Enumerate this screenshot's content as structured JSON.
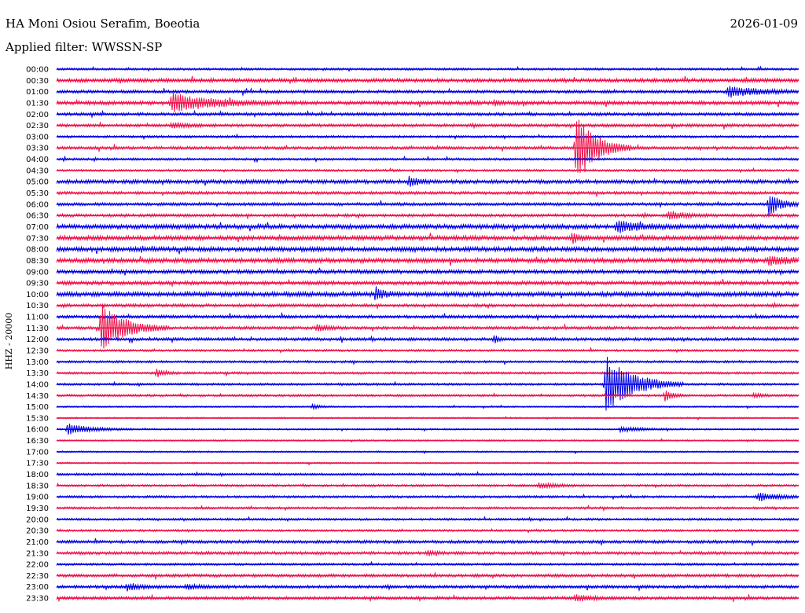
{
  "header": {
    "station": "HA Moni Osiou Serafim, Boeotia",
    "date": "2026-01-09",
    "filter": "Applied filter: WWSSN-SP",
    "channel": "HHZ - 20000"
  },
  "colors": {
    "odd": "#0000e6",
    "even": "#f0104a",
    "text": "#000000"
  },
  "chart_data": {
    "type": "line",
    "title": "HA Moni Osiou Serafim, Boeotia",
    "ylabel": "HHZ - 20000",
    "rows": [
      "00:00",
      "00:30",
      "01:00",
      "01:30",
      "02:00",
      "02:30",
      "03:00",
      "03:30",
      "04:00",
      "04:30",
      "05:00",
      "05:30",
      "06:00",
      "06:30",
      "07:00",
      "07:30",
      "08:00",
      "08:30",
      "09:00",
      "09:30",
      "10:00",
      "10:30",
      "11:00",
      "11:30",
      "12:00",
      "12:30",
      "13:00",
      "13:30",
      "14:00",
      "14:30",
      "15:00",
      "15:30",
      "16:00",
      "16:30",
      "17:00",
      "17:30",
      "18:00",
      "18:30",
      "19:00",
      "19:30",
      "20:00",
      "20:30",
      "21:00",
      "21:30",
      "22:00",
      "22:30",
      "23:00",
      "23:30"
    ],
    "noise": [
      1.5,
      2.5,
      2,
      2.5,
      2,
      2,
      1.5,
      2,
      1.5,
      1.5,
      2.5,
      2,
      2,
      2,
      3,
      3,
      3,
      3,
      2.5,
      2.5,
      3,
      2,
      2,
      2,
      2,
      1.5,
      1.5,
      1.5,
      1.5,
      1.5,
      1,
      1,
      1,
      1,
      1,
      1,
      1.5,
      1.5,
      1.5,
      1.5,
      1.5,
      1.5,
      2,
      2,
      1.5,
      2,
      2,
      2
    ],
    "events": [
      {
        "row": 2,
        "t": 0.905,
        "amp": 7,
        "dur": 0.04
      },
      {
        "row": 3,
        "t": 0.155,
        "amp": 12,
        "dur": 0.05
      },
      {
        "row": 3,
        "t": 0.59,
        "amp": 4,
        "dur": 0.005
      },
      {
        "row": 5,
        "t": 0.155,
        "amp": 3,
        "dur": 0.02
      },
      {
        "row": 7,
        "t": 0.7,
        "amp": 45,
        "dur": 0.025
      },
      {
        "row": 10,
        "t": 0.475,
        "amp": 7,
        "dur": 0.01
      },
      {
        "row": 12,
        "t": 0.96,
        "amp": 14,
        "dur": 0.015
      },
      {
        "row": 13,
        "t": 0.825,
        "amp": 5,
        "dur": 0.02
      },
      {
        "row": 14,
        "t": 0.755,
        "amp": 7,
        "dur": 0.03
      },
      {
        "row": 15,
        "t": 0.695,
        "amp": 6,
        "dur": 0.01
      },
      {
        "row": 17,
        "t": 0.96,
        "amp": 5,
        "dur": 0.03
      },
      {
        "row": 20,
        "t": 0.43,
        "amp": 8,
        "dur": 0.01
      },
      {
        "row": 23,
        "t": 0.06,
        "amp": 30,
        "dur": 0.03
      },
      {
        "row": 23,
        "t": 0.35,
        "amp": 4,
        "dur": 0.015
      },
      {
        "row": 24,
        "t": 0.59,
        "amp": 6,
        "dur": 0.005
      },
      {
        "row": 27,
        "t": 0.135,
        "amp": 5,
        "dur": 0.01
      },
      {
        "row": 28,
        "t": 0.74,
        "amp": 36,
        "dur": 0.035
      },
      {
        "row": 29,
        "t": 0.82,
        "amp": 7,
        "dur": 0.01
      },
      {
        "row": 29,
        "t": 0.94,
        "amp": 3,
        "dur": 0.01
      },
      {
        "row": 30,
        "t": 0.345,
        "amp": 3,
        "dur": 0.01
      },
      {
        "row": 32,
        "t": 0.015,
        "amp": 7,
        "dur": 0.03
      },
      {
        "row": 32,
        "t": 0.76,
        "amp": 3,
        "dur": 0.03
      },
      {
        "row": 37,
        "t": 0.65,
        "amp": 3,
        "dur": 0.025
      },
      {
        "row": 38,
        "t": 0.945,
        "amp": 5,
        "dur": 0.03
      },
      {
        "row": 43,
        "t": 0.5,
        "amp": 3,
        "dur": 0.01
      },
      {
        "row": 46,
        "t": 0.095,
        "amp": 4,
        "dur": 0.02
      },
      {
        "row": 46,
        "t": 0.175,
        "amp": 3,
        "dur": 0.02
      },
      {
        "row": 47,
        "t": 0.7,
        "amp": 4,
        "dur": 0.02
      }
    ]
  }
}
